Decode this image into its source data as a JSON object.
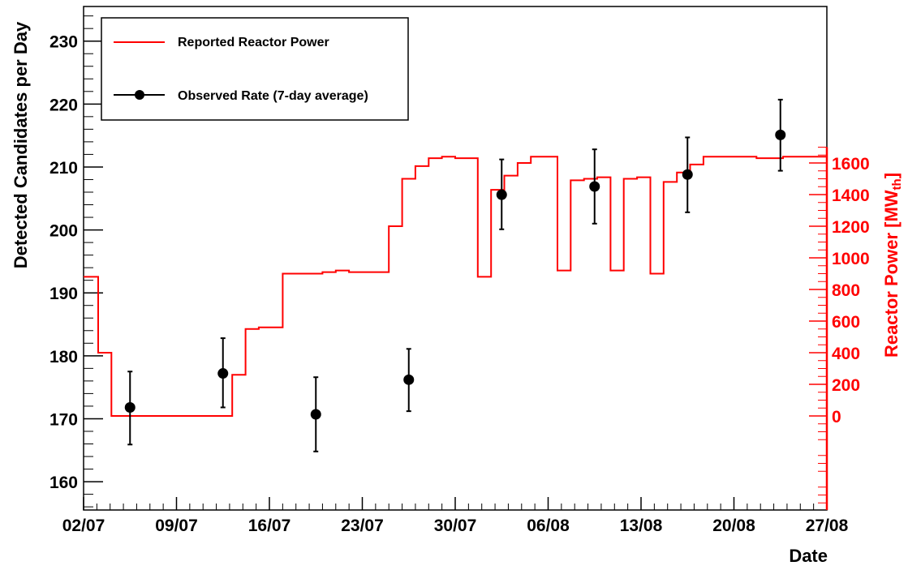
{
  "chart_data": {
    "type": "line",
    "xlabel": "Date",
    "ylabel": "Detected Candidates per Day",
    "y2label": "Reactor Power [MW",
    "y2label_sub": "th",
    "y2label_end": "]",
    "xlim": [
      0,
      56
    ],
    "ylim": [
      155.5,
      235.5
    ],
    "y2lim": [
      0,
      1600
    ],
    "x_ticks": [
      {
        "x": 0,
        "label": "02/07"
      },
      {
        "x": 7,
        "label": "09/07"
      },
      {
        "x": 14,
        "label": "16/07"
      },
      {
        "x": 21,
        "label": "23/07"
      },
      {
        "x": 28,
        "label": "30/07"
      },
      {
        "x": 35,
        "label": "06/08"
      },
      {
        "x": 42,
        "label": "13/08"
      },
      {
        "x": 49,
        "label": "20/08"
      },
      {
        "x": 56,
        "label": "27/08"
      }
    ],
    "y_ticks": [
      160,
      170,
      180,
      190,
      200,
      210,
      220,
      230
    ],
    "y2_ticks": [
      0,
      200,
      400,
      600,
      800,
      1000,
      1200,
      1400,
      1600
    ],
    "legend_position": "top-left",
    "colors": {
      "power": "#ff0000",
      "rate": "#000000",
      "axis": "#000000",
      "right_axis": "#ff0000"
    },
    "series": [
      {
        "name": "Reported Reactor Power",
        "kind": "step",
        "x": [
          0,
          0.1,
          1.1,
          2.1,
          10.2,
          11.2,
          12.2,
          13.2,
          15.0,
          16.0,
          17.0,
          18.0,
          19.0,
          20.0,
          21.0,
          22.0,
          23.0,
          24.0,
          25.0,
          26.0,
          27.0,
          28.0,
          28.7,
          29.7,
          30.7,
          31.7,
          32.7,
          33.7,
          34.7,
          35.7,
          36.7,
          37.7,
          38.7,
          39.7,
          40.7,
          41.7,
          42.7,
          43.7,
          44.7,
          45.7,
          46.7,
          47.7,
          48.7,
          49.7,
          50.7,
          51.7,
          52.7,
          53.7,
          54.7,
          55.7
        ],
        "values": [
          880,
          880,
          400,
          0,
          0,
          260,
          550,
          560,
          900,
          900,
          900,
          910,
          920,
          910,
          910,
          910,
          1200,
          1500,
          1580,
          1630,
          1640,
          1630,
          1630,
          880,
          1430,
          1520,
          1600,
          1640,
          1640,
          920,
          1490,
          1500,
          1510,
          920,
          1500,
          1510,
          900,
          1480,
          1540,
          1590,
          1640,
          1640,
          1640,
          1640,
          1630,
          1630,
          1640,
          1640,
          1640,
          1640
        ],
        "x_end": 56
      },
      {
        "name": "Observed Rate (7-day average)",
        "kind": "points",
        "x": [
          3.5,
          10.5,
          17.5,
          24.5,
          31.5,
          38.5,
          45.5,
          52.5
        ],
        "values": [
          171.8,
          177.2,
          170.7,
          176.2,
          205.6,
          206.9,
          208.8,
          215.1
        ],
        "err_low": [
          5.9,
          5.4,
          5.9,
          5.0,
          5.5,
          5.9,
          6.0,
          5.7
        ],
        "err_high": [
          5.7,
          5.6,
          5.9,
          4.9,
          5.6,
          5.9,
          5.9,
          5.6
        ]
      }
    ]
  }
}
